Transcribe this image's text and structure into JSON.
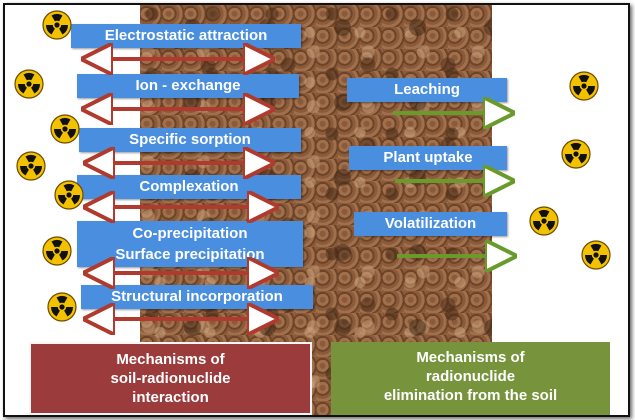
{
  "interaction_mechanisms": [
    "Electrostatic attraction",
    "Ion - exchange",
    "Specific sorption",
    "Complexation",
    "Co-precipitation",
    "Surface precipitation",
    "Structural incorporation"
  ],
  "elimination_mechanisms": [
    "Leaching",
    "Plant uptake",
    "Volatilization"
  ],
  "panels": {
    "interaction": [
      "Mechanisms of",
      "soil-radionuclide",
      "interaction"
    ],
    "elimination": [
      "Mechanisms of",
      "radionuclide",
      "elimination from the soil"
    ]
  },
  "colors": {
    "label_bg": "#4a8ee0",
    "interaction_arrow": "#b03a2e",
    "elimination_arrow": "#6a9a2c",
    "interaction_panel": "#9b3b3b",
    "elimination_panel": "#77933c"
  },
  "icons": {
    "radiation": "radiation-hazard-icon"
  }
}
